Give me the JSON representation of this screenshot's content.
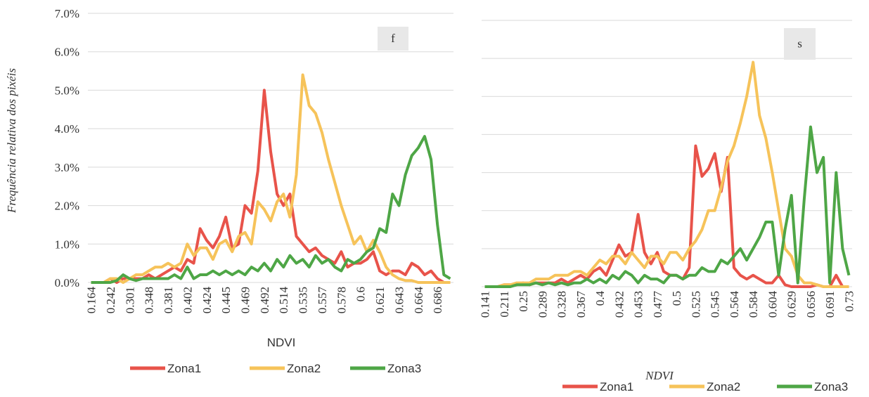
{
  "chart_data": [
    {
      "type": "line",
      "x_label": "NDVI",
      "y_label": "Frequência relativa dos pixéis",
      "annotation": "f",
      "categories": [
        "0.164",
        null,
        null,
        "0.242",
        null,
        null,
        "0.301",
        null,
        null,
        "0.348",
        null,
        null,
        "0.381",
        null,
        null,
        "0.402",
        null,
        null,
        "0.424",
        null,
        null,
        "0.445",
        null,
        null,
        "0.469",
        null,
        null,
        "0.492",
        null,
        null,
        "0.514",
        null,
        null,
        "0.535",
        null,
        null,
        "0.557",
        null,
        null,
        "0.578",
        null,
        null,
        "0.6",
        null,
        null,
        "0.621",
        null,
        null,
        "0.643",
        null,
        null,
        "0.664",
        null,
        null,
        "0.686",
        null,
        null
      ],
      "ylim": [
        0,
        7
      ],
      "yticks": [
        {
          "value": 0,
          "label": "0.0%"
        },
        {
          "value": 1,
          "label": "1.0%"
        },
        {
          "value": 2,
          "label": "2.0%"
        },
        {
          "value": 3,
          "label": "3.0%"
        },
        {
          "value": 4,
          "label": "4.0%"
        },
        {
          "value": 5,
          "label": "5.0%"
        },
        {
          "value": 6,
          "label": "6.0%"
        },
        {
          "value": 7,
          "label": "7.0%"
        }
      ],
      "grid": true,
      "show_tick_labels": true,
      "series": [
        {
          "name": "Zona1",
          "color": "#e8534a",
          "values": [
            0,
            0,
            0,
            0.1,
            0,
            0.1,
            0.1,
            0.1,
            0.1,
            0.2,
            0.1,
            0.2,
            0.3,
            0.4,
            0.3,
            0.6,
            0.5,
            1.4,
            1.1,
            0.9,
            1.2,
            1.7,
            0.9,
            1.0,
            2.0,
            1.8,
            2.9,
            5.0,
            3.4,
            2.3,
            2.0,
            2.3,
            1.2,
            1.0,
            0.8,
            0.9,
            0.7,
            0.6,
            0.5,
            0.8,
            0.4,
            0.5,
            0.5,
            0.6,
            0.8,
            0.3,
            0.2,
            0.3,
            0.3,
            0.2,
            0.5,
            0.4,
            0.2,
            0.3,
            0.1,
            0,
            0
          ]
        },
        {
          "name": "Zona2",
          "color": "#f6c35a",
          "values": [
            0,
            0,
            0,
            0.1,
            0.1,
            0,
            0.1,
            0.2,
            0.2,
            0.3,
            0.4,
            0.4,
            0.5,
            0.4,
            0.5,
            1.0,
            0.7,
            0.9,
            0.9,
            0.6,
            1.0,
            1.1,
            0.8,
            1.2,
            1.3,
            1.0,
            2.1,
            1.9,
            1.6,
            2.1,
            2.3,
            1.7,
            2.8,
            5.4,
            4.6,
            4.4,
            3.9,
            3.2,
            2.6,
            2.0,
            1.5,
            1.0,
            1.2,
            0.8,
            1.1,
            0.8,
            0.4,
            0.2,
            0.1,
            0.05,
            0.05,
            0,
            0,
            0,
            0,
            0,
            0
          ]
        },
        {
          "name": "Zona3",
          "color": "#4ea646",
          "values": [
            0,
            0,
            0,
            0,
            0.05,
            0.2,
            0.1,
            0.05,
            0.1,
            0.1,
            0.1,
            0.1,
            0.1,
            0.2,
            0.1,
            0.4,
            0.1,
            0.2,
            0.2,
            0.3,
            0.2,
            0.3,
            0.2,
            0.3,
            0.2,
            0.4,
            0.3,
            0.5,
            0.3,
            0.6,
            0.4,
            0.7,
            0.5,
            0.6,
            0.4,
            0.7,
            0.5,
            0.6,
            0.4,
            0.3,
            0.6,
            0.5,
            0.6,
            0.8,
            0.9,
            1.4,
            1.3,
            2.3,
            2.0,
            2.8,
            3.3,
            3.5,
            3.8,
            3.2,
            1.5,
            0.2,
            0.1
          ]
        }
      ]
    },
    {
      "type": "line",
      "x_label": "NDVI",
      "annotation": "s",
      "categories": [
        "0.141",
        null,
        null,
        "0.211",
        null,
        null,
        "0.25",
        null,
        null,
        "0.289",
        null,
        null,
        "0.328",
        null,
        null,
        "0.367",
        null,
        null,
        "0.4",
        null,
        null,
        "0.432",
        null,
        null,
        "0.453",
        null,
        null,
        "0.477",
        null,
        null,
        "0.5",
        null,
        null,
        "0.525",
        null,
        null,
        "0.545",
        null,
        null,
        "0.564",
        null,
        null,
        "0.584",
        null,
        null,
        "0.604",
        null,
        null,
        "0.629",
        null,
        null,
        "0.656",
        null,
        null,
        "0.691",
        null,
        null,
        "0.73"
      ],
      "ylim": [
        0,
        7
      ],
      "yticks": [
        0,
        1,
        2,
        3,
        4,
        5,
        6,
        7
      ],
      "grid": true,
      "show_tick_labels": false,
      "series": [
        {
          "name": "Zona1",
          "color": "#e8534a",
          "values": [
            0,
            0,
            0,
            0.05,
            0.05,
            0.05,
            0.1,
            0.05,
            0.1,
            0.1,
            0.1,
            0.1,
            0.2,
            0.1,
            0.2,
            0.3,
            0.2,
            0.4,
            0.5,
            0.3,
            0.7,
            1.1,
            0.8,
            0.9,
            1.9,
            0.9,
            0.6,
            0.9,
            0.4,
            0.3,
            0.3,
            0.2,
            0.5,
            3.7,
            2.9,
            3.1,
            3.5,
            2.5,
            3.4,
            0.5,
            0.3,
            0.2,
            0.3,
            0.2,
            0.1,
            0.1,
            0.3,
            0.05,
            0,
            0,
            0,
            0,
            0.05,
            0,
            0,
            0.3,
            0,
            0
          ]
        },
        {
          "name": "Zona2",
          "color": "#f6c35a",
          "values": [
            0,
            0,
            0,
            0.05,
            0.05,
            0.1,
            0.1,
            0.1,
            0.2,
            0.2,
            0.2,
            0.3,
            0.3,
            0.3,
            0.4,
            0.4,
            0.3,
            0.5,
            0.7,
            0.6,
            0.8,
            0.8,
            0.6,
            0.9,
            0.7,
            0.5,
            0.8,
            0.8,
            0.6,
            0.9,
            0.9,
            0.7,
            1.0,
            1.2,
            1.5,
            2.0,
            2.0,
            2.6,
            3.3,
            3.7,
            4.3,
            5.0,
            5.9,
            4.5,
            3.9,
            3.0,
            2.0,
            1.0,
            0.8,
            0.3,
            0.1,
            0.1,
            0.05,
            0,
            0,
            0,
            0,
            0
          ]
        },
        {
          "name": "Zona3",
          "color": "#4ea646",
          "values": [
            0,
            0,
            0,
            0,
            0,
            0.05,
            0.05,
            0.05,
            0.1,
            0.05,
            0.1,
            0.05,
            0.1,
            0.05,
            0.1,
            0.1,
            0.2,
            0.1,
            0.2,
            0.1,
            0.3,
            0.2,
            0.4,
            0.3,
            0.1,
            0.3,
            0.2,
            0.2,
            0.1,
            0.3,
            0.3,
            0.2,
            0.3,
            0.3,
            0.5,
            0.4,
            0.4,
            0.7,
            0.6,
            0.8,
            1.0,
            0.7,
            1.0,
            1.3,
            1.7,
            1.7,
            0.3,
            1.5,
            2.4,
            0.1,
            2.3,
            4.2,
            3.0,
            3.4,
            0.1,
            3.0,
            1.0,
            0.3
          ]
        }
      ]
    }
  ]
}
